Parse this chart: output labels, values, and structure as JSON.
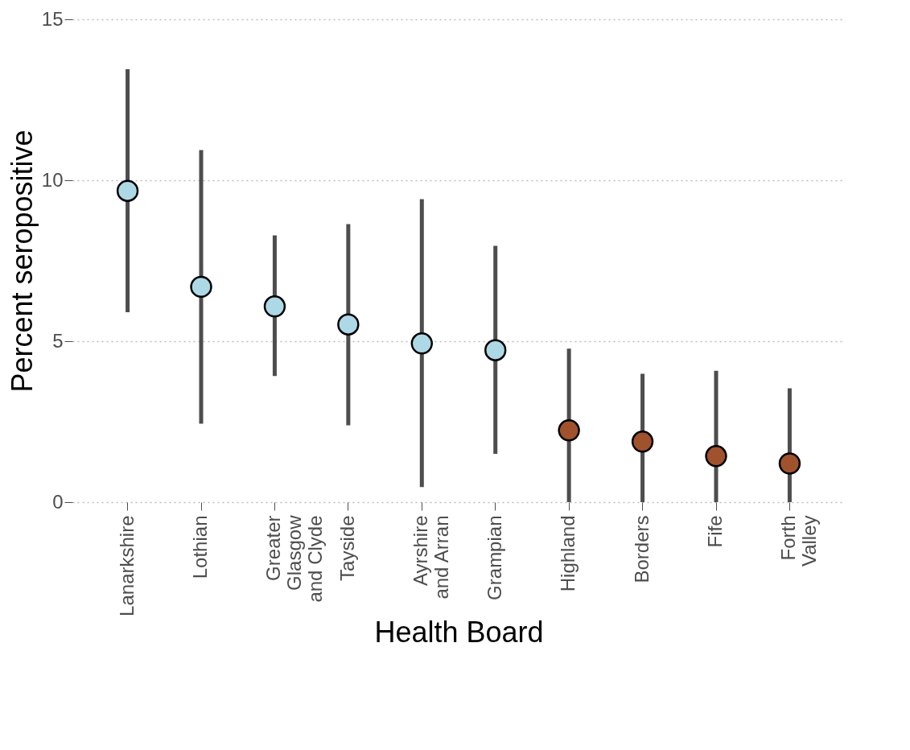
{
  "chart_data": {
    "type": "scatter",
    "xlabel": "Health Board",
    "ylabel": "Percent seropositive",
    "categories": [
      "Lanarkshire",
      "Lothian",
      "Greater Glasgow and Clyde",
      "Tayside",
      "Ayrshire and Arran",
      "Grampian",
      "Highland",
      "Borders",
      "Fife",
      "Forth Valley"
    ],
    "values": [
      9.67,
      6.69,
      6.08,
      5.52,
      4.93,
      4.72,
      2.23,
      1.88,
      1.43,
      1.2
    ],
    "errors": [
      [
        5.9,
        13.45
      ],
      [
        2.44,
        10.94
      ],
      [
        3.92,
        8.29
      ],
      [
        2.39,
        8.64
      ],
      [
        0.47,
        9.41
      ],
      [
        1.5,
        7.96
      ],
      [
        0,
        4.77
      ],
      [
        0,
        3.99
      ],
      [
        0,
        4.08
      ],
      [
        0,
        3.54
      ]
    ],
    "colors": [
      "#add8e6",
      "#add8e6",
      "#add8e6",
      "#add8e6",
      "#add8e6",
      "#add8e6",
      "#a0522d",
      "#a0522d",
      "#a0522d",
      "#a0522d"
    ],
    "ylim": [
      0,
      15
    ],
    "yticks": [
      0,
      5,
      10,
      15
    ],
    "grid": "y",
    "marker": "circle"
  }
}
